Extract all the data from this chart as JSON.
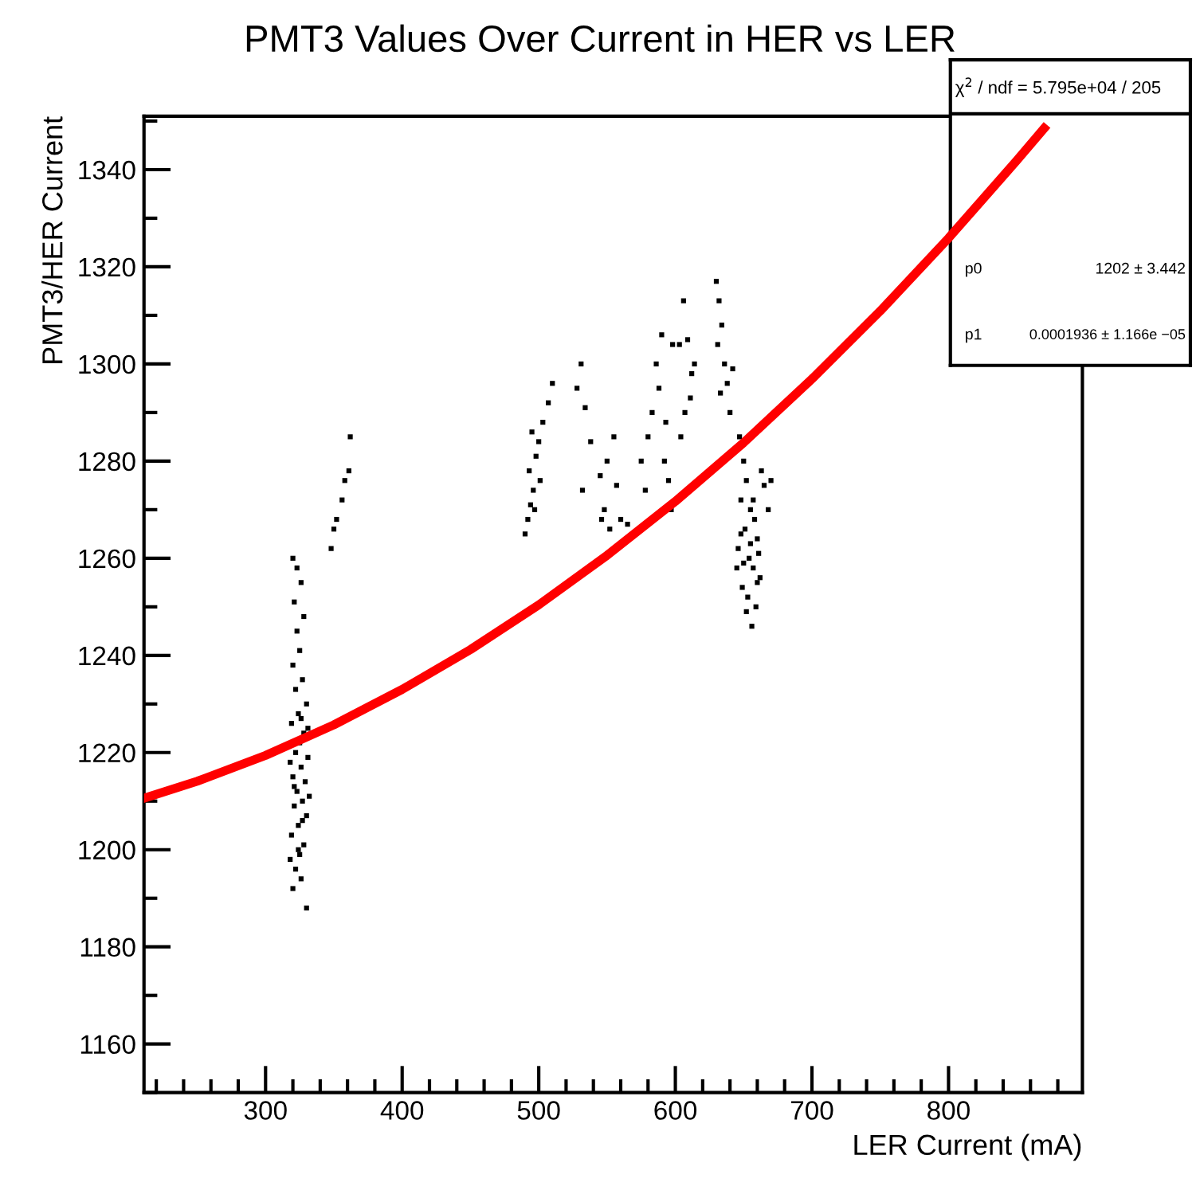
{
  "chart_data": {
    "type": "scatter",
    "title": "PMT3 Values Over Current in HER vs LER",
    "xlabel": "LER Current (mA)",
    "ylabel": "PMT3/HER Current",
    "xlim": [
      211,
      898
    ],
    "xticks": [
      300,
      400,
      500,
      600,
      700,
      800
    ],
    "ylim": [
      1150,
      1351
    ],
    "yticks": [
      1160,
      1180,
      1200,
      1220,
      1240,
      1260,
      1280,
      1300,
      1320,
      1340
    ],
    "grid": false,
    "marker": "square",
    "series": [
      {
        "color": "#000000",
        "x": [
          320,
          322,
          325,
          328,
          319,
          324,
          330,
          321,
          327,
          323,
          329,
          320,
          326,
          331,
          322,
          325,
          328,
          319,
          324,
          330,
          322,
          327,
          320,
          325,
          323,
          328,
          321,
          326,
          323,
          320,
          330,
          326,
          318,
          332,
          318,
          331,
          324,
          327,
          321,
          326,
          348,
          350,
          352,
          356,
          358,
          361,
          362,
          490,
          492,
          494,
          496,
          493,
          498,
          500,
          495,
          503,
          507,
          510,
          501,
          497,
          528,
          531,
          534,
          538,
          532,
          545,
          548,
          552,
          550,
          555,
          557,
          560,
          546,
          565,
          575,
          578,
          580,
          583,
          586,
          590,
          588,
          592,
          595,
          597,
          593,
          598,
          603,
          606,
          609,
          612,
          607,
          604,
          611,
          614,
          630,
          632,
          634,
          636,
          638,
          633,
          640,
          642,
          631,
          647,
          650,
          652,
          648,
          655,
          658,
          651,
          660,
          646,
          654,
          657,
          662,
          649,
          653,
          659,
          656,
          665,
          668,
          645,
          661,
          650,
          655,
          663,
          657,
          648,
          670,
          652,
          660
        ],
        "values": [
          1192,
          1196,
          1199,
          1201,
          1203,
          1205,
          1207,
          1209,
          1210,
          1212,
          1214,
          1215,
          1217,
          1219,
          1220,
          1222,
          1224,
          1226,
          1228,
          1230,
          1233,
          1235,
          1238,
          1241,
          1245,
          1248,
          1251,
          1255,
          1258,
          1260,
          1188,
          1194,
          1198,
          1211,
          1218,
          1225,
          1200,
          1206,
          1213,
          1227,
          1262,
          1266,
          1268,
          1272,
          1276,
          1278,
          1285,
          1265,
          1268,
          1271,
          1274,
          1278,
          1281,
          1284,
          1286,
          1288,
          1292,
          1296,
          1276,
          1270,
          1295,
          1300,
          1291,
          1284,
          1274,
          1277,
          1270,
          1266,
          1280,
          1285,
          1275,
          1268,
          1268,
          1267,
          1280,
          1274,
          1285,
          1290,
          1300,
          1306,
          1295,
          1280,
          1276,
          1270,
          1288,
          1304,
          1304,
          1313,
          1305,
          1298,
          1290,
          1285,
          1293,
          1300,
          1317,
          1313,
          1308,
          1300,
          1296,
          1294,
          1290,
          1299,
          1304,
          1285,
          1280,
          1276,
          1272,
          1270,
          1268,
          1266,
          1264,
          1262,
          1260,
          1258,
          1256,
          1254,
          1252,
          1250,
          1246,
          1275,
          1270,
          1258,
          1261,
          1259,
          1263,
          1278,
          1272,
          1265,
          1276,
          1249,
          1255
        ]
      },
      {
        "type": "line",
        "color": "#ff0000",
        "marker": "none",
        "line_style": "solid",
        "x": [
          211,
          250,
          300,
          350,
          400,
          450,
          500,
          550,
          600,
          650,
          700,
          750,
          800,
          850,
          870
        ],
        "values": [
          1210.6,
          1214.1,
          1219.4,
          1225.7,
          1233.0,
          1241.2,
          1250.4,
          1260.6,
          1271.7,
          1283.8,
          1296.9,
          1310.9,
          1325.9,
          1341.9,
          1348.5
        ]
      }
    ],
    "annotations": [
      "χ$^{2}$ / ndf = 5.795e+04 / 205",
      "p0",
      "1202 ± 3.442",
      "p1",
      "0.0001936 ± 1.166e −05"
    ]
  }
}
